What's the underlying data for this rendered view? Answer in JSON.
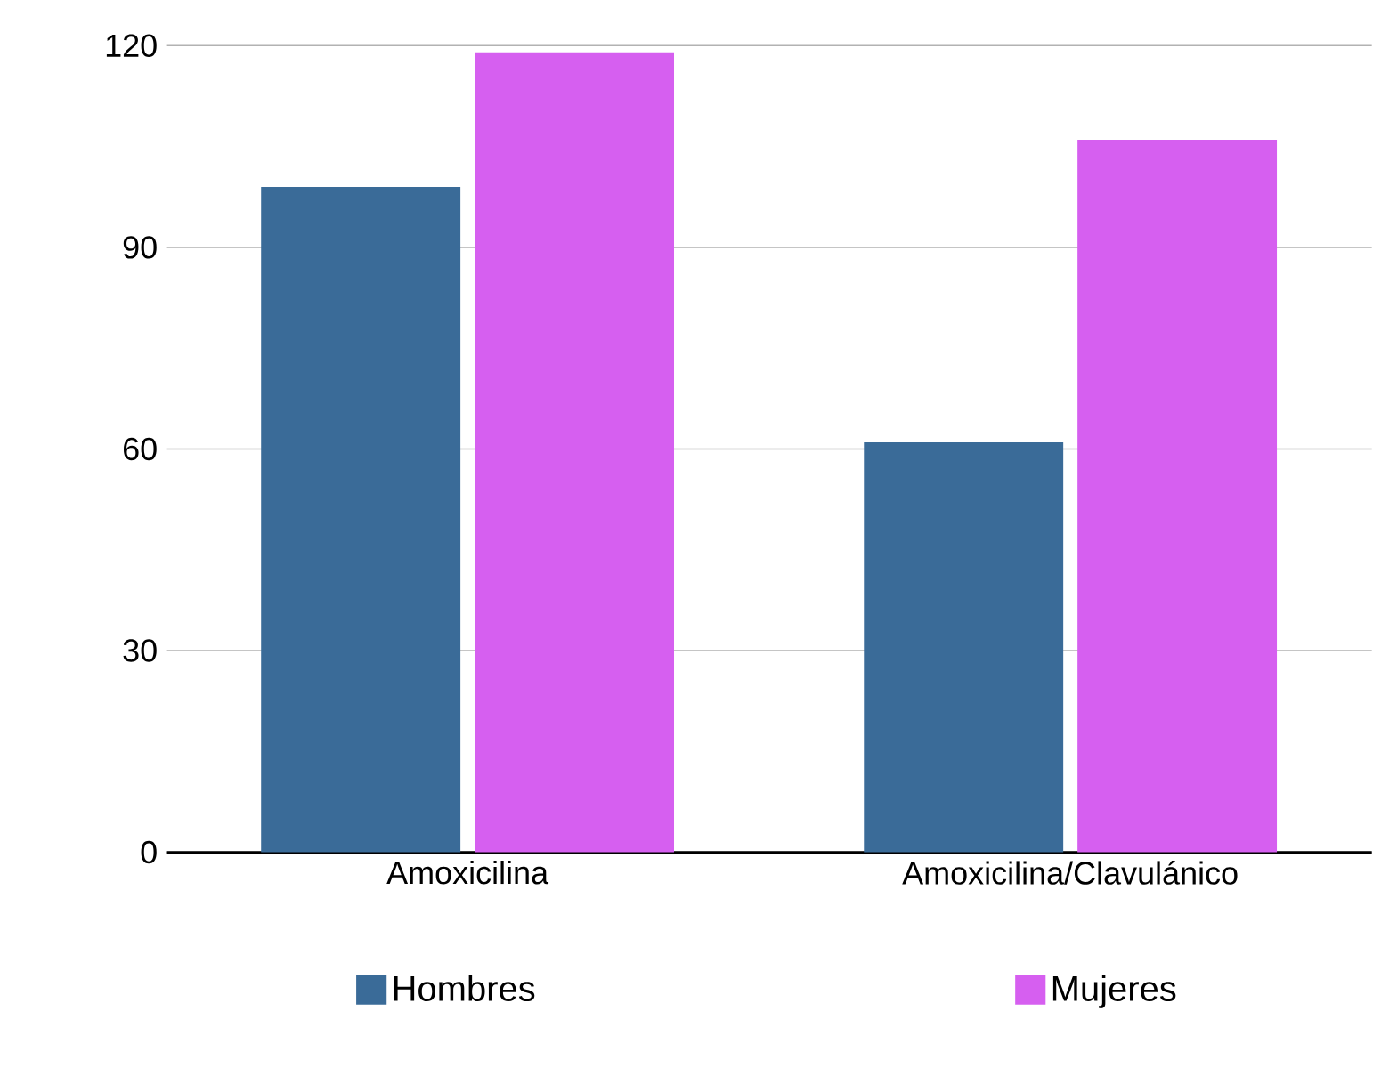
{
  "chart_data": {
    "type": "bar",
    "categories": [
      "Amoxicilina",
      "Amoxicilina/Clavulánico"
    ],
    "series": [
      {
        "name": "Hombres",
        "color": "#3a6b98",
        "values": [
          99,
          61
        ]
      },
      {
        "name": "Mujeres",
        "color": "#d65ff0",
        "values": [
          119,
          106
        ]
      }
    ],
    "ylim": [
      0,
      120
    ],
    "yticks": [
      0,
      30,
      60,
      90,
      120
    ],
    "grid": "y",
    "legend": "bottom"
  }
}
